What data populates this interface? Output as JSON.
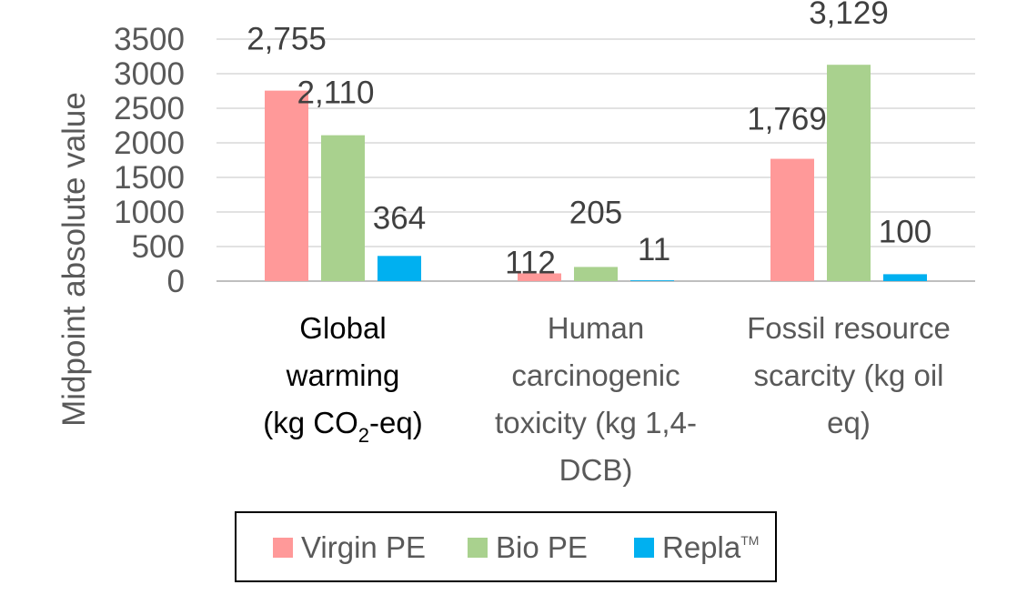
{
  "chart_data": {
    "type": "bar",
    "ylabel": "Midpoint absolute value",
    "ylim": [
      0,
      3500
    ],
    "yticks": [
      "0",
      "500",
      "1000",
      "1500",
      "2000",
      "2500",
      "3000",
      "3500"
    ],
    "grid": true,
    "legend_position": "bottom",
    "categories": [
      {
        "label_lines": [
          "Global",
          "warming"
        ],
        "unit_prefix": "(kg CO",
        "unit_sub": "2",
        "unit_suffix": "-eq)"
      },
      {
        "label_lines": [
          "Human",
          "carcinogenic",
          "toxicity (kg 1,4-",
          "DCB)"
        ]
      },
      {
        "label_lines": [
          "Fossil resource",
          "scarcity (kg oil",
          "eq)"
        ]
      }
    ],
    "series": [
      {
        "name": "Virgin PE",
        "color": "#ff9999",
        "values": [
          2755,
          112,
          1769
        ],
        "labels": [
          "2,755",
          "112",
          "1,769"
        ]
      },
      {
        "name": "Bio PE",
        "color": "#a9d18e",
        "values": [
          2110,
          205,
          3129
        ],
        "labels": [
          "2,110",
          "205",
          "3,129"
        ]
      },
      {
        "name": "Repla",
        "name_sup": "TM",
        "color": "#00b0f0",
        "values": [
          364,
          11,
          100
        ],
        "labels": [
          "364",
          "11",
          "100"
        ]
      }
    ]
  }
}
